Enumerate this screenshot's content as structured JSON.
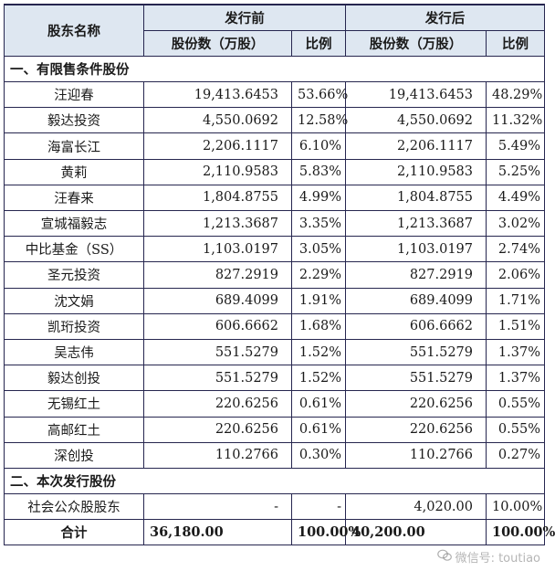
{
  "header": {
    "name_col": "股东名称",
    "before_group": "发行前",
    "after_group": "发行后",
    "shares_col": "股份数（万股）",
    "ratio_col": "比例"
  },
  "sections": [
    {
      "title": "一、有限售条件股份",
      "rows": [
        {
          "name": "汪迎春",
          "before_shares": "19,413.6453",
          "before_ratio": "53.66%",
          "after_shares": "19,413.6453",
          "after_ratio": "48.29%"
        },
        {
          "name": "毅达投资",
          "before_shares": "4,550.0692",
          "before_ratio": "12.58%",
          "after_shares": "4,550.0692",
          "after_ratio": "11.32%"
        },
        {
          "name": "海富长江",
          "before_shares": "2,206.1117",
          "before_ratio": "6.10%",
          "after_shares": "2,206.1117",
          "after_ratio": "5.49%"
        },
        {
          "name": "黄莉",
          "before_shares": "2,110.9583",
          "before_ratio": "5.83%",
          "after_shares": "2,110.9583",
          "after_ratio": "5.25%"
        },
        {
          "name": "汪春来",
          "before_shares": "1,804.8755",
          "before_ratio": "4.99%",
          "after_shares": "1,804.8755",
          "after_ratio": "4.49%"
        },
        {
          "name": "宣城福毅志",
          "before_shares": "1,213.3687",
          "before_ratio": "3.35%",
          "after_shares": "1,213.3687",
          "after_ratio": "3.02%"
        },
        {
          "name": "中比基金（SS）",
          "before_shares": "1,103.0197",
          "before_ratio": "3.05%",
          "after_shares": "1,103.0197",
          "after_ratio": "2.74%"
        },
        {
          "name": "圣元投资",
          "before_shares": "827.2919",
          "before_ratio": "2.29%",
          "after_shares": "827.2919",
          "after_ratio": "2.06%"
        },
        {
          "name": "沈文娟",
          "before_shares": "689.4099",
          "before_ratio": "1.91%",
          "after_shares": "689.4099",
          "after_ratio": "1.71%"
        },
        {
          "name": "凯珩投资",
          "before_shares": "606.6662",
          "before_ratio": "1.68%",
          "after_shares": "606.6662",
          "after_ratio": "1.51%"
        },
        {
          "name": "吴志伟",
          "before_shares": "551.5279",
          "before_ratio": "1.52%",
          "after_shares": "551.5279",
          "after_ratio": "1.37%"
        },
        {
          "name": "毅达创投",
          "before_shares": "551.5279",
          "before_ratio": "1.52%",
          "after_shares": "551.5279",
          "after_ratio": "1.37%"
        },
        {
          "name": "无锡红土",
          "before_shares": "220.6256",
          "before_ratio": "0.61%",
          "after_shares": "220.6256",
          "after_ratio": "0.55%"
        },
        {
          "name": "高邮红土",
          "before_shares": "220.6256",
          "before_ratio": "0.61%",
          "after_shares": "220.6256",
          "after_ratio": "0.55%"
        },
        {
          "name": "深创投",
          "before_shares": "110.2766",
          "before_ratio": "0.30%",
          "after_shares": "110.2766",
          "after_ratio": "0.27%"
        }
      ]
    },
    {
      "title": "二、本次发行股份",
      "rows": [
        {
          "name": "社会公众股股东",
          "before_shares": "-",
          "before_ratio": "-",
          "after_shares": "4,020.00",
          "after_ratio": "10.00%"
        }
      ]
    }
  ],
  "total": {
    "name": "合计",
    "before_shares": "36,180.00",
    "before_ratio": "100.00%",
    "after_shares": "40,200.00",
    "after_ratio": "100.00%"
  },
  "watermark": {
    "text": "微信号: toutiao",
    "icon": "wechat-icon"
  }
}
